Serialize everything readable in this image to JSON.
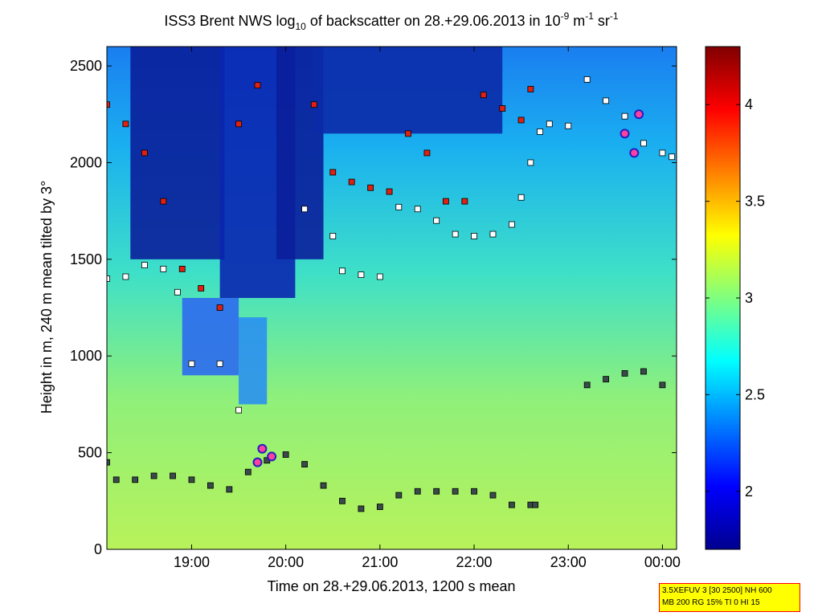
{
  "chart_data": {
    "type": "heatmap",
    "title": {
      "prefix": "ISS3 Brent NWS log",
      "sub": "10",
      "middle": " of backscatter on 28.+29.06.2013 in 10",
      "exp1": "-9",
      "unit_m": " m",
      "exp2": "-1",
      "unit_sr": " sr",
      "exp3": "-1"
    },
    "xlabel": "Time on 28.+29.06.2013, 1200 s mean",
    "ylabel": "Height in m, 240 m mean tilted by 3°",
    "xlim_hours": [
      18.1,
      24.15
    ],
    "xticks": [
      {
        "value": 19,
        "label": "19:00"
      },
      {
        "value": 20,
        "label": "20:00"
      },
      {
        "value": 21,
        "label": "21:00"
      },
      {
        "value": 22,
        "label": "22:00"
      },
      {
        "value": 23,
        "label": "23:00"
      },
      {
        "value": 24,
        "label": "00:00"
      }
    ],
    "ylim": [
      0,
      2600
    ],
    "yticks": [
      0,
      500,
      1000,
      1500,
      2000,
      2500
    ],
    "colorbar": {
      "range": [
        1.7,
        4.3
      ],
      "ticks": [
        2,
        2.5,
        3,
        3.5,
        4
      ],
      "colormap": "jet"
    },
    "boundary_layer_top_series": {
      "marker": "dark square",
      "x": [
        18.1,
        18.2,
        18.4,
        18.6,
        18.8,
        19.0,
        19.2,
        19.4,
        19.6,
        19.8,
        20.0,
        20.2,
        20.4,
        20.6,
        20.8,
        21.0,
        21.2,
        21.4,
        21.6,
        21.8,
        22.0,
        22.2,
        22.4,
        22.6,
        22.65
      ],
      "y": [
        450,
        360,
        360,
        380,
        380,
        360,
        330,
        310,
        400,
        460,
        490,
        440,
        330,
        250,
        210,
        220,
        280,
        300,
        300,
        300,
        300,
        280,
        230,
        230,
        230
      ]
    },
    "late_layer_series": {
      "marker": "dark square",
      "x": [
        23.2,
        23.4,
        23.6,
        23.8,
        24.0
      ],
      "y": [
        850,
        880,
        910,
        920,
        850
      ]
    },
    "upper_layer_series": {
      "marker": "white square",
      "x": [
        18.1,
        18.3,
        18.5,
        18.7,
        18.85,
        19.0,
        19.3,
        19.5,
        20.2,
        20.5,
        20.6,
        20.8,
        21.0,
        21.2,
        21.4,
        21.6,
        21.8,
        22.0,
        22.2,
        22.4,
        22.5,
        22.6,
        22.7,
        22.8,
        23.0,
        23.2,
        23.4,
        23.6,
        23.8,
        24.0,
        24.1
      ],
      "y": [
        1400,
        1410,
        1470,
        1450,
        1330,
        960,
        960,
        720,
        1760,
        1620,
        1440,
        1420,
        1410,
        1770,
        1760,
        1700,
        1630,
        1620,
        1630,
        1680,
        1820,
        2000,
        2160,
        2200,
        2190,
        2430,
        2320,
        2240,
        2100,
        2050,
        2030
      ]
    },
    "cloud_base_series": {
      "marker": "red square",
      "x": [
        18.1,
        18.3,
        18.5,
        18.7,
        18.9,
        19.1,
        19.3,
        19.5,
        19.7,
        20.3,
        20.5,
        20.7,
        20.9,
        21.1,
        21.3,
        21.5,
        21.7,
        21.9,
        22.1,
        22.3,
        22.5,
        22.6
      ],
      "y": [
        2300,
        2200,
        2050,
        1800,
        1450,
        1350,
        1250,
        2200,
        2400,
        2300,
        1950,
        1900,
        1870,
        1850,
        2150,
        2050,
        1800,
        1800,
        2350,
        2280,
        2220,
        2380
      ]
    },
    "cloud_hits": [
      {
        "x": 19.7,
        "y": 450
      },
      {
        "x": 19.75,
        "y": 520
      },
      {
        "x": 19.85,
        "y": 480
      },
      {
        "x": 23.6,
        "y": 2150
      },
      {
        "x": 23.7,
        "y": 2050
      },
      {
        "x": 23.75,
        "y": 2250
      }
    ]
  },
  "info_box": {
    "line1": "3.5XEFUV 3 [30 2500] NH 600",
    "line2": "MB 200 RG 15% TI 0 HI 15"
  }
}
